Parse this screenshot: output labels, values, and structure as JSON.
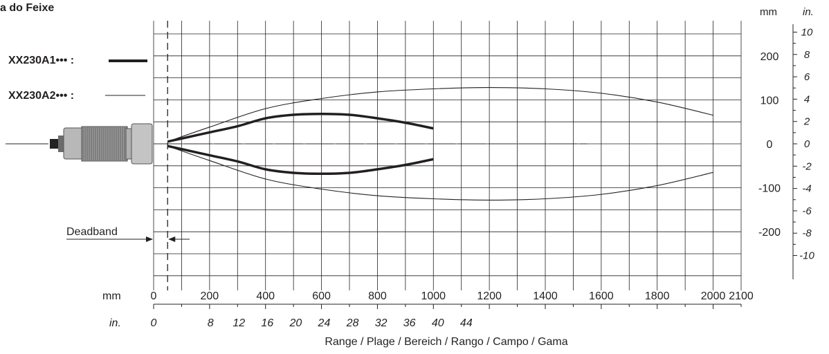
{
  "chart_data": {
    "type": "line",
    "title": "a do Feixe",
    "xlabel": "Range / Plage / Bereich / Rango / Campo / Gama",
    "x_unit_mm": "mm",
    "x_unit_in": "in.",
    "y_unit_mm": "mm",
    "y_unit_in": "in.",
    "xlim": [
      0,
      2100
    ],
    "ylim": [
      -250,
      250
    ],
    "x_ticks_mm": [
      "0",
      "200",
      "400",
      "600",
      "800",
      "1000",
      "1200",
      "1400",
      "1600",
      "1800",
      "2000",
      "2100"
    ],
    "x_ticks_in": [
      "0",
      "8",
      "12",
      "16",
      "20",
      "24",
      "28",
      "32",
      "36",
      "40",
      "44"
    ],
    "y_ticks_mm": [
      "200",
      "100",
      "0",
      "-100",
      "-200"
    ],
    "y_ticks_in": [
      "10",
      "8",
      "6",
      "4",
      "2",
      "0",
      "-2",
      "-4",
      "-6",
      "-8",
      "-10"
    ],
    "deadband_label": "Deadband",
    "deadband_mm": 50,
    "grid": true,
    "series": [
      {
        "name": "XX230A1••• :",
        "style": "thick",
        "upper": {
          "x": [
            50,
            100,
            200,
            300,
            400,
            500,
            600,
            700,
            800,
            900,
            1000
          ],
          "y": [
            5,
            12,
            26,
            40,
            58,
            66,
            68,
            66,
            58,
            48,
            35
          ]
        },
        "lower": {
          "x": [
            50,
            100,
            200,
            300,
            400,
            500,
            600,
            700,
            800,
            900,
            1000
          ],
          "y": [
            -5,
            -12,
            -26,
            -40,
            -58,
            -66,
            -68,
            -66,
            -58,
            -48,
            -35
          ]
        }
      },
      {
        "name": "XX230A2••• :",
        "style": "thin",
        "upper": {
          "x": [
            50,
            200,
            400,
            600,
            800,
            1000,
            1200,
            1400,
            1600,
            1800,
            2000
          ],
          "y": [
            5,
            38,
            80,
            103,
            118,
            125,
            128,
            125,
            115,
            95,
            65
          ]
        },
        "lower": {
          "x": [
            50,
            200,
            400,
            600,
            800,
            1000,
            1200,
            1400,
            1600,
            1800,
            2000
          ],
          "y": [
            -5,
            -38,
            -80,
            -103,
            -118,
            -125,
            -128,
            -125,
            -115,
            -95,
            -65
          ]
        }
      }
    ]
  },
  "colors": {
    "ink": "#231f20",
    "grid": "#231f20",
    "sensor_body": "#b8b8b8",
    "sensor_dark": "#6b6b6b",
    "sensor_connector": "#222222"
  },
  "icons": {
    "sensor": "photoelectric-sensor-icon"
  }
}
